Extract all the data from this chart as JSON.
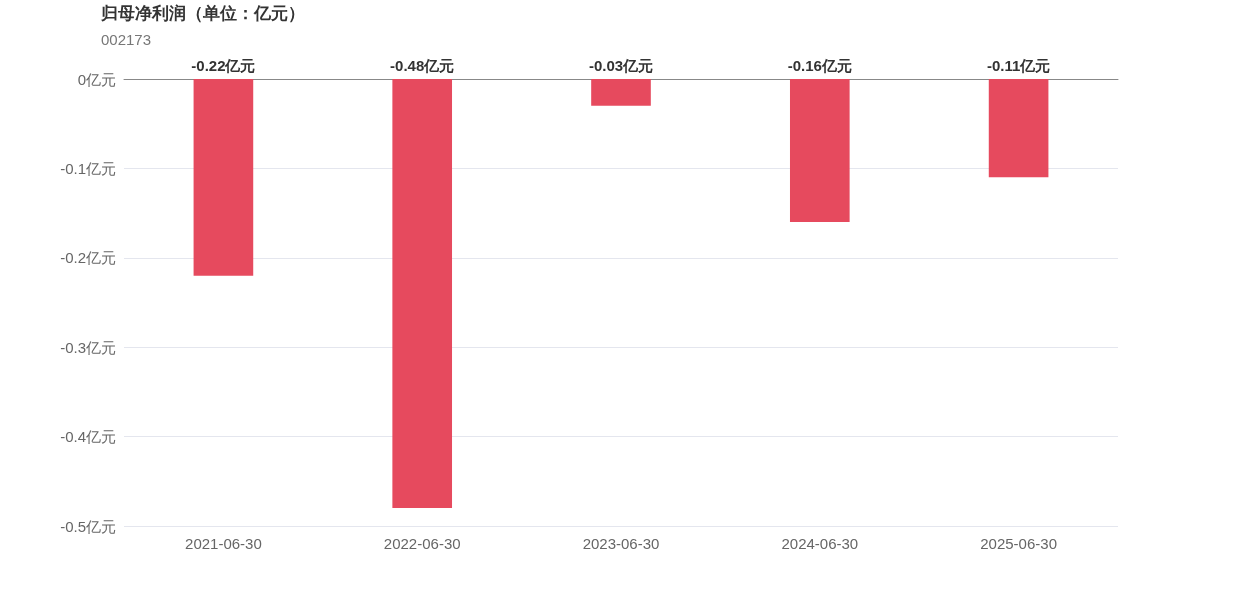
{
  "chart_data": {
    "type": "bar",
    "title": "归母净利润（单位：亿元）",
    "subtitle": "002173",
    "categories": [
      "2021-06-30",
      "2022-06-30",
      "2023-06-30",
      "2024-06-30",
      "2025-06-30"
    ],
    "values": [
      -0.22,
      -0.48,
      -0.03,
      -0.16,
      -0.11
    ],
    "value_labels": [
      "-0.22亿元",
      "-0.48亿元",
      "-0.03亿元",
      "-0.16亿元",
      "-0.11亿元"
    ],
    "color": "#e64a5e",
    "ylim": [
      -0.5,
      0
    ],
    "yticks": [
      {
        "value": -0.5,
        "label": "-0.5亿元"
      },
      {
        "value": -0.4,
        "label": "-0.4亿元"
      },
      {
        "value": -0.3,
        "label": "-0.3亿元"
      },
      {
        "value": -0.2,
        "label": "-0.2亿元"
      },
      {
        "value": -0.1,
        "label": "-0.1亿元"
      },
      {
        "value": 0,
        "label": "0亿元"
      }
    ],
    "grid": "y"
  }
}
